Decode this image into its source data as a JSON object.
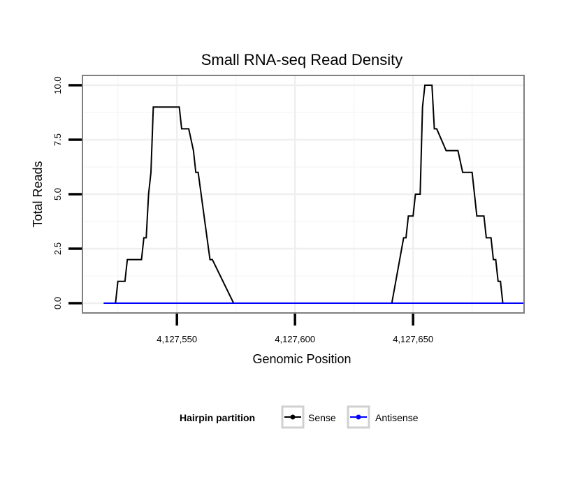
{
  "chart_data": {
    "type": "line",
    "title": "Small RNA-seq Read Density",
    "xlabel": "Genomic Position",
    "ylabel": "Total Reads",
    "xlim": [
      4127510,
      4127697
    ],
    "ylim": [
      -0.45,
      10.45
    ],
    "x_ticks": [
      {
        "value": 4127550,
        "label": "4,127,550"
      },
      {
        "value": 4127600,
        "label": "4,127,600"
      },
      {
        "value": 4127650,
        "label": "4,127,650"
      }
    ],
    "y_ticks": [
      {
        "value": 0,
        "label": "0.0"
      },
      {
        "value": 2.5,
        "label": "2.5"
      },
      {
        "value": 5,
        "label": "5.0"
      },
      {
        "value": 7.5,
        "label": "7.5"
      },
      {
        "value": 10,
        "label": "10.0"
      }
    ],
    "grid": true,
    "legend": {
      "title": "Hairpin partition",
      "position": "bottom",
      "entries": [
        {
          "label": "Sense",
          "color": "#000000"
        },
        {
          "label": "Antisense",
          "color": "#0000ff"
        }
      ]
    },
    "series": [
      {
        "name": "Sense",
        "color": "#000000",
        "x": [
          4127519,
          4127524,
          4127525,
          4127528,
          4127529,
          4127532,
          4127533,
          4127535,
          4127536,
          4127537,
          4127538,
          4127539,
          4127540,
          4127551,
          4127552,
          4127554,
          4127555,
          4127557,
          4127558,
          4127559,
          4127564,
          4127565,
          4127574,
          4127575,
          4127577,
          4127578,
          4127580,
          4127581,
          4127583,
          4127584,
          4127585,
          4127586,
          4127587,
          4127588,
          4127588,
          4127590,
          4127591,
          4127592,
          4127593,
          4127594,
          4127595,
          4127596,
          4127599,
          4127600,
          4127601,
          4127602,
          4127604,
          4127605,
          4127607,
          4127608,
          4127610,
          4127611,
          4127614,
          4127615,
          4127617,
          4127618,
          4127620,
          4127621,
          4127623,
          4127624,
          4127627,
          4127628,
          4127639,
          4127640,
          4127644,
          4127645,
          4127641,
          4127646,
          4127647,
          4127648,
          4127650,
          4127651,
          4127653,
          4127654,
          4127655,
          4127658,
          4127659,
          4127660,
          4127664,
          4127666,
          4127667,
          4127669,
          4127671,
          4127675,
          4127677,
          4127680,
          4127681,
          4127683,
          4127684,
          4127685,
          4127686,
          4127687,
          4127688,
          4127689,
          4127692,
          4127693,
          4127694,
          4127695,
          4127697
        ],
        "y": [
          0,
          0,
          1,
          1,
          2,
          2,
          2,
          2,
          3,
          3,
          5,
          6,
          9,
          9,
          8,
          8,
          8,
          7,
          6,
          6,
          2,
          2,
          0,
          0,
          0,
          0,
          0,
          0,
          0,
          0,
          0,
          0,
          0,
          0,
          0,
          0,
          0,
          0,
          0,
          0,
          0,
          0,
          0,
          0,
          0,
          0,
          0,
          0,
          0,
          0,
          0,
          0,
          0,
          0,
          0,
          0,
          0,
          0,
          0,
          0,
          0,
          0,
          0,
          0,
          0,
          0,
          0,
          3,
          3,
          4,
          4,
          5,
          5,
          9,
          10,
          10,
          8,
          8,
          7,
          7,
          7,
          7,
          6,
          6,
          4,
          4,
          3,
          3,
          2,
          2,
          1,
          1,
          0,
          0,
          0,
          0,
          0,
          0,
          0
        ]
      },
      {
        "name": "Antisense",
        "color": "#0000ff",
        "x": [
          4127519,
          4127697
        ],
        "y": [
          0,
          0
        ]
      }
    ]
  }
}
